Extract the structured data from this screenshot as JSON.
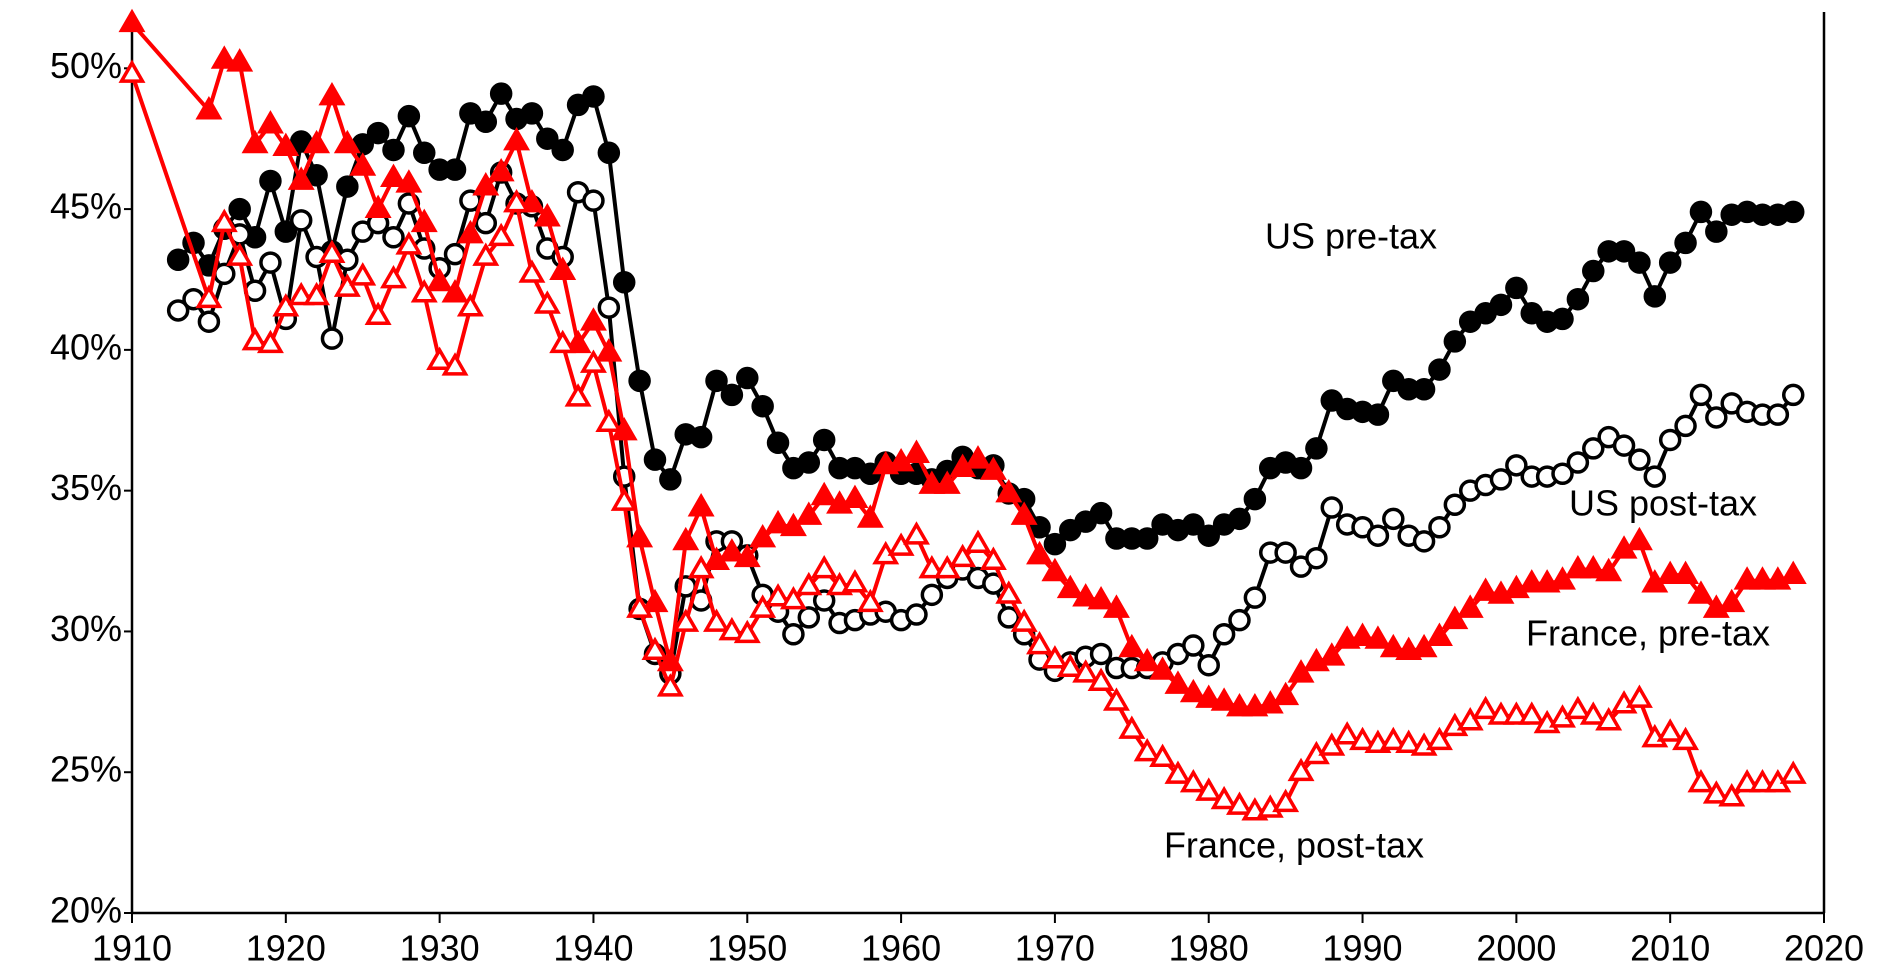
{
  "chart_data": {
    "type": "line",
    "xlim": [
      1910,
      2020
    ],
    "xticks": [
      1910,
      1920,
      1930,
      1940,
      1950,
      1960,
      1970,
      1980,
      1990,
      2000,
      2010,
      2020
    ],
    "ylim": [
      20,
      52
    ],
    "yticks": [
      {
        "value": 20,
        "label": "20%"
      },
      {
        "value": 25,
        "label": "25%"
      },
      {
        "value": 30,
        "label": "30%"
      },
      {
        "value": 35,
        "label": "35%"
      },
      {
        "value": 40,
        "label": "40%"
      },
      {
        "value": 45,
        "label": "45%"
      },
      {
        "value": 50,
        "label": "50%"
      }
    ],
    "series": [
      {
        "name": "US pre-tax",
        "color": "#000000",
        "marker": "circle",
        "marker_fill": "filled",
        "x": [
          1913,
          1914,
          1915,
          1916,
          1917,
          1918,
          1919,
          1920,
          1921,
          1922,
          1923,
          1924,
          1925,
          1926,
          1927,
          1928,
          1929,
          1930,
          1931,
          1932,
          1933,
          1934,
          1935,
          1936,
          1937,
          1938,
          1939,
          1940,
          1941,
          1942,
          1943,
          1944,
          1945,
          1946,
          1947,
          1948,
          1949,
          1950,
          1951,
          1952,
          1953,
          1954,
          1955,
          1956,
          1957,
          1958,
          1959,
          1960,
          1961,
          1962,
          1963,
          1964,
          1965,
          1966,
          1967,
          1968,
          1969,
          1970,
          1971,
          1972,
          1973,
          1974,
          1975,
          1976,
          1977,
          1978,
          1979,
          1980,
          1981,
          1982,
          1983,
          1984,
          1985,
          1986,
          1987,
          1988,
          1989,
          1990,
          1991,
          1992,
          1993,
          1994,
          1995,
          1996,
          1997,
          1998,
          1999,
          2000,
          2001,
          2002,
          2003,
          2004,
          2005,
          2006,
          2007,
          2008,
          2009,
          2010,
          2011,
          2012,
          2013,
          2014,
          2015,
          2016,
          2017,
          2018
        ],
        "values": [
          43.2,
          43.8,
          43.0,
          44.3,
          45.0,
          44.0,
          46.0,
          44.2,
          47.4,
          46.2,
          43.5,
          45.8,
          47.3,
          47.7,
          47.1,
          48.3,
          47.0,
          46.4,
          46.4,
          48.4,
          48.1,
          49.1,
          48.2,
          48.4,
          47.5,
          47.1,
          48.7,
          49.0,
          47.0,
          42.4,
          38.9,
          36.1,
          35.4,
          37.0,
          36.9,
          38.9,
          38.4,
          39.0,
          38.0,
          36.7,
          35.8,
          36.0,
          36.8,
          35.8,
          35.8,
          35.6,
          36.0,
          35.6,
          35.6,
          35.4,
          35.7,
          36.2,
          35.8,
          35.9,
          34.9,
          34.7,
          33.7,
          33.1,
          33.6,
          33.9,
          34.2,
          33.3,
          33.3,
          33.3,
          33.8,
          33.6,
          33.8,
          33.4,
          33.8,
          34.0,
          34.7,
          35.8,
          36.0,
          35.8,
          36.5,
          38.2,
          37.9,
          37.8,
          37.7,
          38.9,
          38.6,
          38.6,
          39.3,
          40.3,
          41.0,
          41.3,
          41.6,
          42.2,
          41.3,
          41.0,
          41.1,
          41.8,
          42.8,
          43.5,
          43.5,
          43.1,
          41.9,
          43.1,
          43.8,
          44.9,
          44.2,
          44.8,
          44.9,
          44.8,
          44.8,
          44.9
        ]
      },
      {
        "name": "US post-tax",
        "color": "#000000",
        "marker": "circle",
        "marker_fill": "open",
        "x": [
          1913,
          1914,
          1915,
          1916,
          1917,
          1918,
          1919,
          1920,
          1921,
          1922,
          1923,
          1924,
          1925,
          1926,
          1927,
          1928,
          1929,
          1930,
          1931,
          1932,
          1933,
          1934,
          1935,
          1936,
          1937,
          1938,
          1939,
          1940,
          1941,
          1942,
          1943,
          1944,
          1945,
          1946,
          1947,
          1948,
          1949,
          1950,
          1951,
          1952,
          1953,
          1954,
          1955,
          1956,
          1957,
          1958,
          1959,
          1960,
          1961,
          1962,
          1963,
          1964,
          1965,
          1966,
          1967,
          1968,
          1969,
          1970,
          1971,
          1972,
          1973,
          1974,
          1975,
          1976,
          1977,
          1978,
          1979,
          1980,
          1981,
          1982,
          1983,
          1984,
          1985,
          1986,
          1987,
          1988,
          1989,
          1990,
          1991,
          1992,
          1993,
          1994,
          1995,
          1996,
          1997,
          1998,
          1999,
          2000,
          2001,
          2002,
          2003,
          2004,
          2005,
          2006,
          2007,
          2008,
          2009,
          2010,
          2011,
          2012,
          2013,
          2014,
          2015,
          2016,
          2017,
          2018
        ],
        "values": [
          41.4,
          41.8,
          41.0,
          42.7,
          44.1,
          42.1,
          43.1,
          41.1,
          44.6,
          43.3,
          40.4,
          43.2,
          44.2,
          44.5,
          44.0,
          45.2,
          43.6,
          42.9,
          43.4,
          45.3,
          44.5,
          46.3,
          45.2,
          45.1,
          43.6,
          43.3,
          45.6,
          45.3,
          41.5,
          35.5,
          30.8,
          29.2,
          28.5,
          31.6,
          31.1,
          33.2,
          33.2,
          32.7,
          31.3,
          30.7,
          29.9,
          30.5,
          31.1,
          30.3,
          30.4,
          30.6,
          30.7,
          30.4,
          30.6,
          31.3,
          31.9,
          32.2,
          31.9,
          31.7,
          30.5,
          29.9,
          29.0,
          28.6,
          28.9,
          29.1,
          29.2,
          28.7,
          28.7,
          28.7,
          28.9,
          29.2,
          29.5,
          28.8,
          29.9,
          30.4,
          31.2,
          32.8,
          32.8,
          32.3,
          32.6,
          34.4,
          33.8,
          33.7,
          33.4,
          34.0,
          33.4,
          33.2,
          33.7,
          34.5,
          35.0,
          35.2,
          35.4,
          35.9,
          35.5,
          35.5,
          35.6,
          36.0,
          36.5,
          36.9,
          36.6,
          36.1,
          35.5,
          36.8,
          37.3,
          38.4,
          37.6,
          38.1,
          37.8,
          37.7,
          37.7,
          38.4
        ]
      },
      {
        "name": "France, pre-tax",
        "color": "#ff0000",
        "marker": "triangle",
        "marker_fill": "filled",
        "x": [
          1910,
          1915,
          1916,
          1917,
          1918,
          1919,
          1920,
          1921,
          1922,
          1923,
          1924,
          1925,
          1926,
          1927,
          1928,
          1929,
          1930,
          1931,
          1932,
          1933,
          1934,
          1935,
          1936,
          1937,
          1938,
          1939,
          1940,
          1941,
          1942,
          1943,
          1944,
          1945,
          1946,
          1947,
          1948,
          1949,
          1950,
          1951,
          1952,
          1953,
          1954,
          1955,
          1956,
          1957,
          1958,
          1959,
          1960,
          1961,
          1962,
          1963,
          1964,
          1965,
          1966,
          1967,
          1968,
          1969,
          1970,
          1971,
          1972,
          1973,
          1974,
          1975,
          1976,
          1977,
          1978,
          1979,
          1980,
          1981,
          1982,
          1983,
          1984,
          1985,
          1986,
          1987,
          1988,
          1989,
          1990,
          1991,
          1992,
          1993,
          1994,
          1995,
          1996,
          1997,
          1998,
          1999,
          2000,
          2001,
          2002,
          2003,
          2004,
          2005,
          2006,
          2007,
          2008,
          2009,
          2010,
          2011,
          2012,
          2013,
          2014,
          2015,
          2016,
          2017,
          2018
        ],
        "values": [
          51.6,
          48.5,
          50.3,
          50.2,
          47.3,
          48.0,
          47.2,
          46.0,
          47.3,
          49.0,
          47.3,
          46.5,
          45.0,
          46.1,
          45.9,
          44.5,
          42.4,
          42.0,
          44.1,
          45.8,
          46.3,
          47.4,
          45.2,
          44.7,
          42.8,
          40.2,
          41.0,
          39.9,
          37.1,
          33.3,
          31.0,
          28.9,
          33.2,
          34.4,
          32.5,
          32.8,
          32.6,
          33.3,
          33.8,
          33.7,
          34.1,
          34.8,
          34.5,
          34.7,
          34.0,
          35.9,
          36.0,
          36.3,
          35.2,
          35.2,
          35.8,
          36.1,
          35.7,
          34.9,
          34.1,
          32.7,
          32.1,
          31.5,
          31.2,
          31.1,
          30.8,
          29.4,
          28.9,
          28.6,
          28.1,
          27.8,
          27.6,
          27.5,
          27.3,
          27.3,
          27.4,
          27.7,
          28.5,
          28.9,
          29.1,
          29.7,
          29.8,
          29.7,
          29.4,
          29.3,
          29.4,
          29.8,
          30.4,
          30.8,
          31.4,
          31.3,
          31.5,
          31.7,
          31.7,
          31.8,
          32.2,
          32.2,
          32.1,
          32.9,
          33.2,
          31.7,
          32.0,
          32.0,
          31.3,
          30.8,
          31.0,
          31.8,
          31.8,
          31.8,
          32.0
        ]
      },
      {
        "name": "France, post-tax",
        "color": "#ff0000",
        "marker": "triangle",
        "marker_fill": "open",
        "x": [
          1910,
          1915,
          1916,
          1917,
          1918,
          1919,
          1920,
          1921,
          1922,
          1923,
          1924,
          1925,
          1926,
          1927,
          1928,
          1929,
          1930,
          1931,
          1932,
          1933,
          1934,
          1935,
          1936,
          1937,
          1938,
          1939,
          1940,
          1941,
          1942,
          1943,
          1944,
          1945,
          1946,
          1947,
          1948,
          1949,
          1950,
          1951,
          1952,
          1953,
          1954,
          1955,
          1956,
          1957,
          1958,
          1959,
          1960,
          1961,
          1962,
          1963,
          1964,
          1965,
          1966,
          1967,
          1968,
          1969,
          1970,
          1971,
          1972,
          1973,
          1974,
          1975,
          1976,
          1977,
          1978,
          1979,
          1980,
          1981,
          1982,
          1983,
          1984,
          1985,
          1986,
          1987,
          1988,
          1989,
          1990,
          1991,
          1992,
          1993,
          1994,
          1995,
          1996,
          1997,
          1998,
          1999,
          2000,
          2001,
          2002,
          2003,
          2004,
          2005,
          2006,
          2007,
          2008,
          2009,
          2010,
          2011,
          2012,
          2013,
          2014,
          2015,
          2016,
          2017,
          2018
        ],
        "values": [
          49.8,
          41.8,
          44.5,
          43.3,
          40.3,
          40.2,
          41.5,
          41.9,
          41.9,
          43.4,
          42.2,
          42.6,
          41.2,
          42.5,
          43.7,
          42.0,
          39.6,
          39.4,
          41.5,
          43.3,
          44.0,
          45.2,
          42.7,
          41.6,
          40.2,
          38.3,
          39.5,
          37.4,
          34.6,
          30.8,
          29.3,
          28.0,
          30.3,
          32.2,
          30.3,
          30.0,
          29.9,
          30.8,
          31.2,
          31.1,
          31.6,
          32.2,
          31.6,
          31.7,
          31.0,
          32.7,
          33.0,
          33.4,
          32.2,
          32.2,
          32.6,
          33.1,
          32.5,
          31.3,
          30.3,
          29.5,
          29.0,
          28.7,
          28.5,
          28.2,
          27.5,
          26.5,
          25.7,
          25.5,
          24.9,
          24.6,
          24.3,
          24.0,
          23.8,
          23.6,
          23.7,
          23.9,
          25.0,
          25.6,
          25.9,
          26.3,
          26.1,
          26.0,
          26.1,
          26.0,
          25.9,
          26.1,
          26.6,
          26.8,
          27.2,
          27.0,
          27.0,
          27.0,
          26.7,
          26.9,
          27.2,
          27.0,
          26.8,
          27.4,
          27.6,
          26.2,
          26.4,
          26.1,
          24.6,
          24.2,
          24.1,
          24.6,
          24.6,
          24.6,
          24.9
        ]
      }
    ]
  }
}
